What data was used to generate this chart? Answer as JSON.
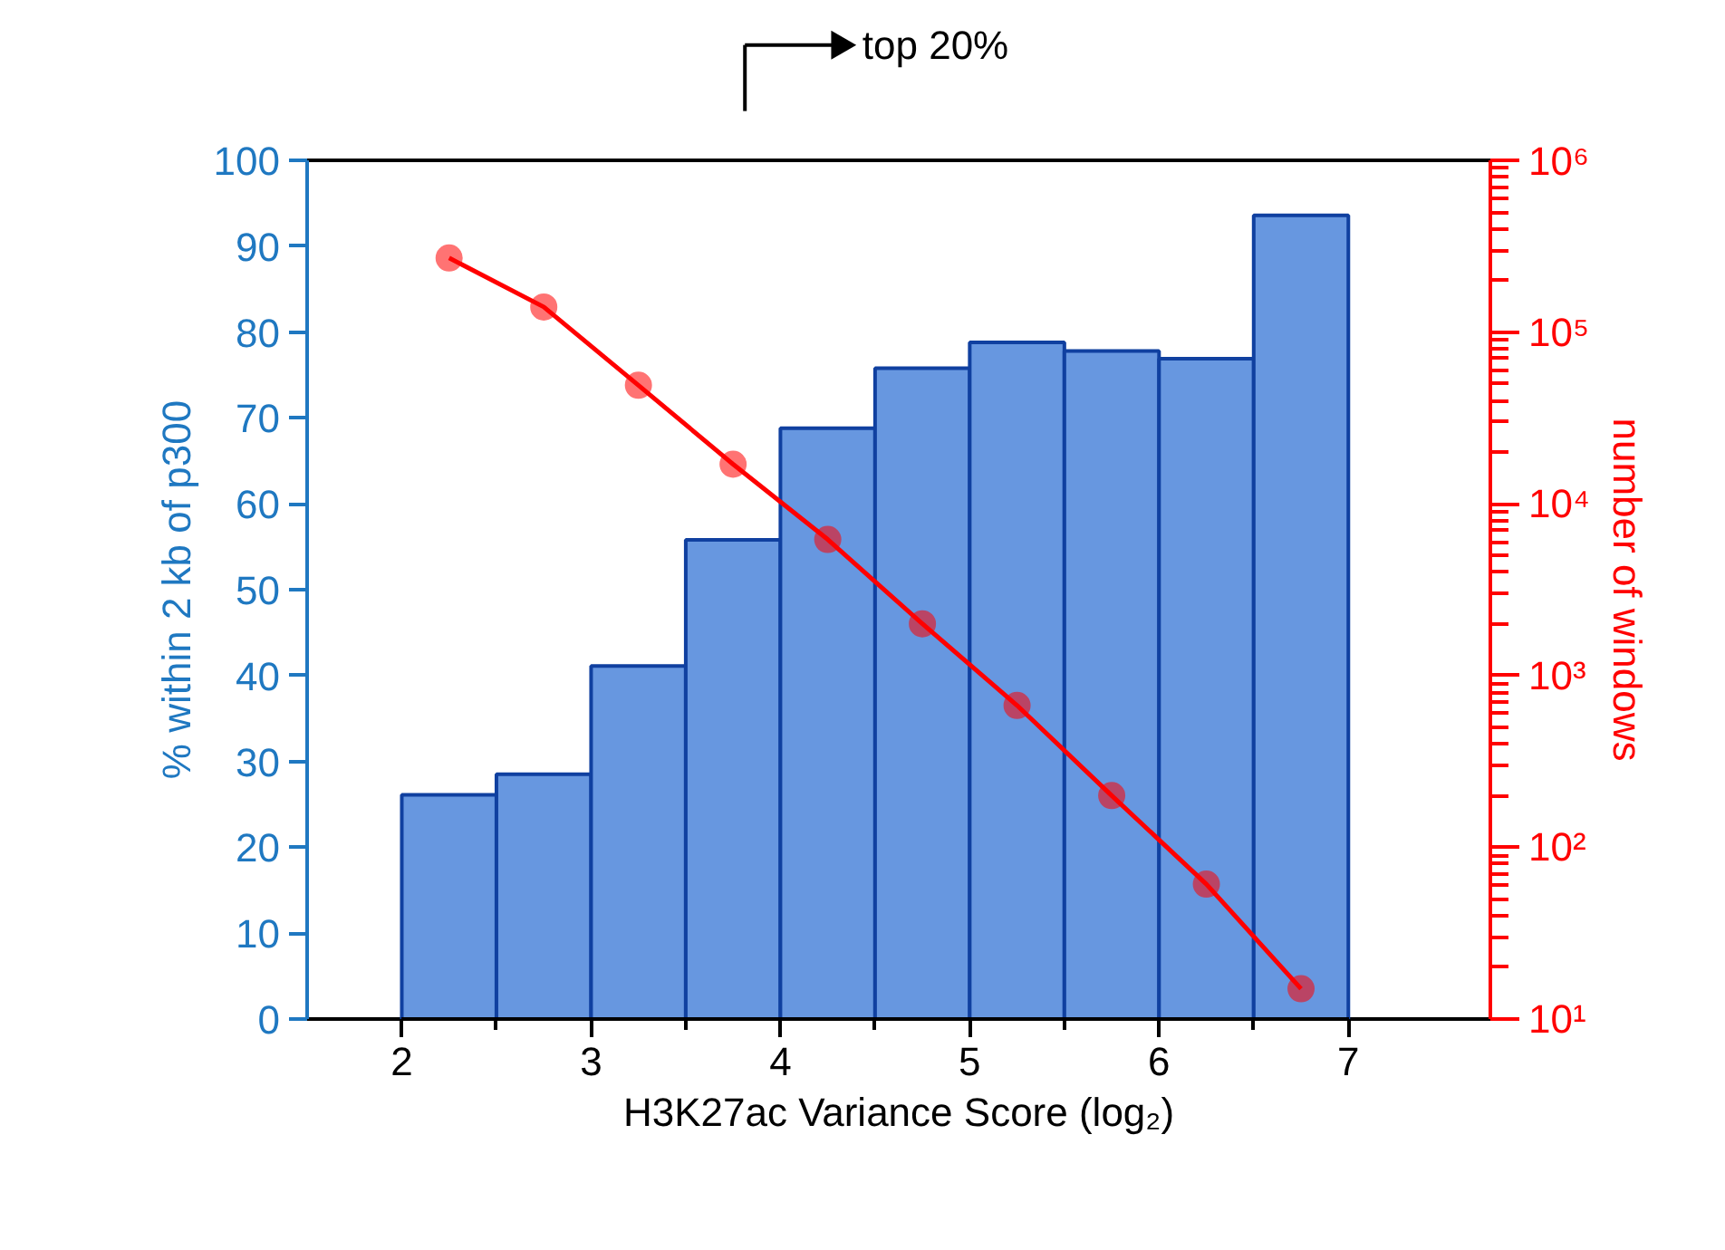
{
  "chart_data": {
    "type": "histogram",
    "xlabel": "H3K27ac Variance Score (log₂)",
    "ylabel": "% within 2 kb of p300",
    "y2label": "number of windows",
    "annotations": [
      "top 20%"
    ],
    "xlim": [
      1.5,
      7.75
    ],
    "xticks": [
      2,
      3,
      4,
      5,
      6,
      7
    ],
    "ylim": [
      0,
      100
    ],
    "yticks": [
      0,
      10,
      20,
      30,
      40,
      50,
      60,
      70,
      80,
      90,
      100
    ],
    "y2lim": [
      10,
      1000000
    ],
    "y2ticks": [
      {
        "value": 10,
        "label": "10¹"
      },
      {
        "value": 100,
        "label": "10²"
      },
      {
        "value": 1000,
        "label": "10³"
      },
      {
        "value": 10000,
        "label": "10⁴"
      },
      {
        "value": 100000,
        "label": "10⁵"
      },
      {
        "value": 1000000,
        "label": "10⁶"
      }
    ],
    "log": "y2",
    "grid": false,
    "series": [
      {
        "color": "#6797e0",
        "bins": [
          2,
          2.5,
          3,
          3.5,
          4,
          4.5,
          5,
          5.5,
          6,
          6.5,
          7
        ],
        "values": [
          26.1,
          28.5,
          41.1,
          55.8,
          68.8,
          75.8,
          78.8,
          77.8,
          76.9,
          93.6
        ]
      },
      {
        "type": "line",
        "color": "#ff0000",
        "axis": "y2",
        "marker": "circle",
        "x": [
          2.25,
          2.75,
          3.25,
          3.75,
          4.25,
          4.75,
          5.25,
          5.75,
          6.25,
          6.75
        ],
        "values": [
          270000,
          140000,
          49000,
          17000,
          6200,
          2000,
          670,
          200,
          61,
          15
        ]
      }
    ]
  }
}
